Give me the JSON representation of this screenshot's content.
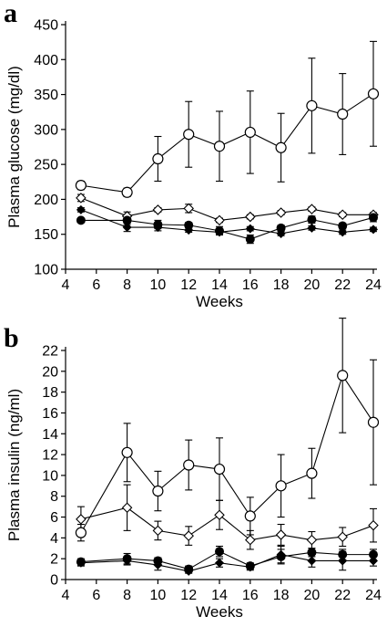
{
  "chart_data": [
    {
      "panel": "a",
      "type": "line",
      "xlabel": "Weeks",
      "ylabel": "Plasma glucose (mg/dl)",
      "xlim": [
        4,
        24
      ],
      "ylim": [
        100,
        450
      ],
      "xticks": [
        4,
        6,
        8,
        10,
        12,
        14,
        16,
        18,
        20,
        22,
        24
      ],
      "yticks": [
        100,
        150,
        200,
        250,
        300,
        350,
        400,
        450
      ],
      "grid": false,
      "series": [
        {
          "marker": "open-circle",
          "x": [
            5,
            8,
            10,
            12,
            14,
            16,
            18,
            20,
            22,
            24
          ],
          "y": [
            220,
            210,
            258,
            293,
            276,
            296,
            274,
            334,
            322,
            351
          ],
          "err": [
            6,
            6,
            32,
            47,
            50,
            59,
            49,
            68,
            58,
            75
          ]
        },
        {
          "marker": "open-diamond",
          "x": [
            5,
            8,
            10,
            12,
            14,
            16,
            18,
            20,
            22,
            24
          ],
          "y": [
            202,
            176,
            185,
            187,
            170,
            175,
            181,
            186,
            178,
            178
          ],
          "err": [
            5,
            6,
            3,
            6,
            3,
            3,
            3,
            3,
            3,
            3
          ]
        },
        {
          "marker": "filled-circle",
          "x": [
            5,
            8,
            10,
            12,
            14,
            16,
            18,
            20,
            22,
            24
          ],
          "y": [
            170,
            170,
            164,
            163,
            155,
            143,
            159,
            171,
            162,
            174
          ],
          "err": [
            3,
            6,
            6,
            4,
            6,
            6,
            4,
            5,
            4,
            6
          ]
        },
        {
          "marker": "filled-diamond",
          "x": [
            5,
            8,
            10,
            12,
            14,
            16,
            18,
            20,
            22,
            24
          ],
          "y": [
            185,
            160,
            160,
            156,
            153,
            158,
            151,
            159,
            153,
            157
          ],
          "err": [
            3,
            6,
            5,
            3,
            3,
            3,
            3,
            3,
            3,
            3
          ]
        }
      ]
    },
    {
      "panel": "b",
      "type": "line",
      "xlabel": "Weeks",
      "ylabel": "Plasma insulin (ng/ml)",
      "xlim": [
        4,
        24
      ],
      "ylim": [
        0,
        22
      ],
      "xticks": [
        4,
        6,
        8,
        10,
        12,
        14,
        16,
        18,
        20,
        22,
        24
      ],
      "yticks": [
        0,
        2,
        4,
        6,
        8,
        10,
        12,
        14,
        16,
        18,
        20,
        22
      ],
      "grid": false,
      "series": [
        {
          "marker": "open-circle",
          "x": [
            5,
            8,
            10,
            12,
            14,
            16,
            18,
            20,
            22,
            24
          ],
          "y": [
            4.5,
            12.2,
            8.5,
            11.0,
            10.6,
            6.1,
            9.0,
            10.2,
            19.6,
            15.1
          ],
          "err": [
            0.8,
            2.8,
            1.9,
            2.4,
            3.0,
            1.8,
            3.0,
            2.4,
            5.5,
            6.0
          ]
        },
        {
          "marker": "open-diamond",
          "x": [
            5,
            8,
            10,
            12,
            14,
            16,
            18,
            20,
            22,
            24
          ],
          "y": [
            5.8,
            6.9,
            4.7,
            4.2,
            6.2,
            3.8,
            4.3,
            3.8,
            4.1,
            5.2
          ],
          "err": [
            1.2,
            2.2,
            0.9,
            0.9,
            1.4,
            0.9,
            1.0,
            0.8,
            0.9,
            1.6
          ]
        },
        {
          "marker": "filled-circle",
          "x": [
            5,
            8,
            10,
            12,
            14,
            16,
            18,
            20,
            22,
            24
          ],
          "y": [
            1.7,
            2.0,
            1.8,
            1.0,
            2.7,
            1.3,
            2.2,
            2.6,
            2.4,
            2.4
          ],
          "err": [
            0.3,
            0.5,
            0.3,
            0.3,
            0.5,
            0.3,
            0.7,
            0.4,
            0.5,
            0.5
          ]
        },
        {
          "marker": "filled-diamond",
          "x": [
            5,
            8,
            10,
            12,
            14,
            16,
            18,
            20,
            22,
            24
          ],
          "y": [
            1.6,
            1.8,
            1.4,
            0.8,
            1.6,
            1.2,
            2.4,
            1.8,
            1.8,
            1.8
          ],
          "err": [
            0.3,
            0.4,
            0.5,
            0.2,
            0.4,
            0.3,
            0.8,
            0.6,
            0.9,
            0.5
          ]
        }
      ]
    }
  ]
}
